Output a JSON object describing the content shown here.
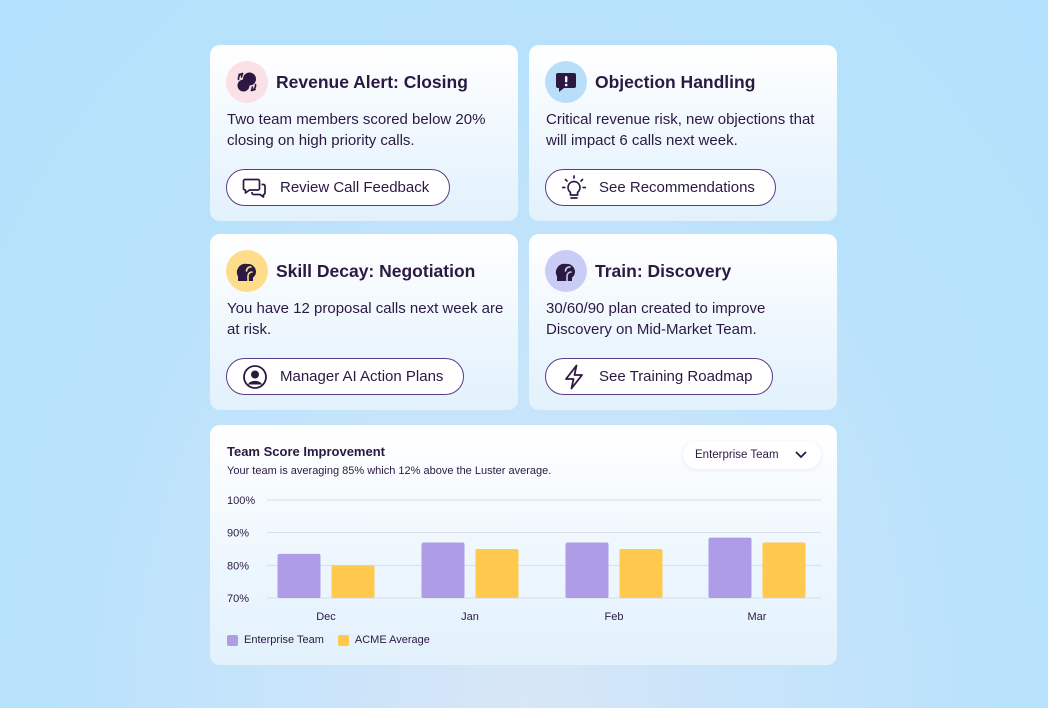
{
  "colors": {
    "accent_dark": "#2b1942",
    "button_border": "#5b3d87",
    "series_enterprise": "#ae9ce6",
    "series_acme": "#fec94d",
    "badge_pink": "#fbe0e6",
    "badge_blue": "#b8defa",
    "badge_yellow": "#fedd8a",
    "badge_lavender": "#c9cdf6"
  },
  "cards": [
    {
      "icon": "revenue-alert-icon",
      "title": "Revenue Alert: Closing",
      "text": "Two team members scored below 20% closing on high priority calls.",
      "button": {
        "icon": "chat-bubbles-icon",
        "label": "Review Call Feedback"
      }
    },
    {
      "icon": "exclamation-bubble-icon",
      "title": "Objection Handling",
      "text": "Critical revenue risk, new objections that will impact 6 calls next week.",
      "button": {
        "icon": "lightbulb-icon",
        "label": "See Recommendations"
      }
    },
    {
      "icon": "head-silhouette-icon",
      "title": "Skill Decay: Negotiation",
      "text": "You have 12 proposal calls next week are at risk.",
      "button": {
        "icon": "user-circle-icon",
        "label": "Manager AI Action Plans"
      }
    },
    {
      "icon": "head-silhouette-icon",
      "title": "Train: Discovery",
      "text": "30/60/90 plan created to improve Discovery on Mid-Market Team.",
      "button": {
        "icon": "lightning-icon",
        "label": "See Training Roadmap"
      }
    }
  ],
  "chart_panel": {
    "title": "Team Score Improvement",
    "subtitle": "Your team is averaging 85% which 12% above the Luster average.",
    "dropdown": {
      "selected": "Enterprise Team",
      "icon": "chevron-down-icon"
    }
  },
  "chart_data": {
    "type": "bar",
    "title": "Team Score Improvement",
    "categories": [
      "Dec",
      "Jan",
      "Feb",
      "Mar"
    ],
    "series": [
      {
        "name": "Enterprise Team",
        "values": [
          83.5,
          87.0,
          87.0,
          88.5
        ]
      },
      {
        "name": "ACME Average",
        "values": [
          80.0,
          85.0,
          85.0,
          87.0
        ]
      }
    ],
    "ylim": [
      70,
      100
    ],
    "yticks": [
      70,
      80,
      90,
      100
    ],
    "ytick_labels": [
      "70%",
      "80%",
      "90%",
      "100%"
    ],
    "grid": true,
    "legend": "bottom-left"
  }
}
